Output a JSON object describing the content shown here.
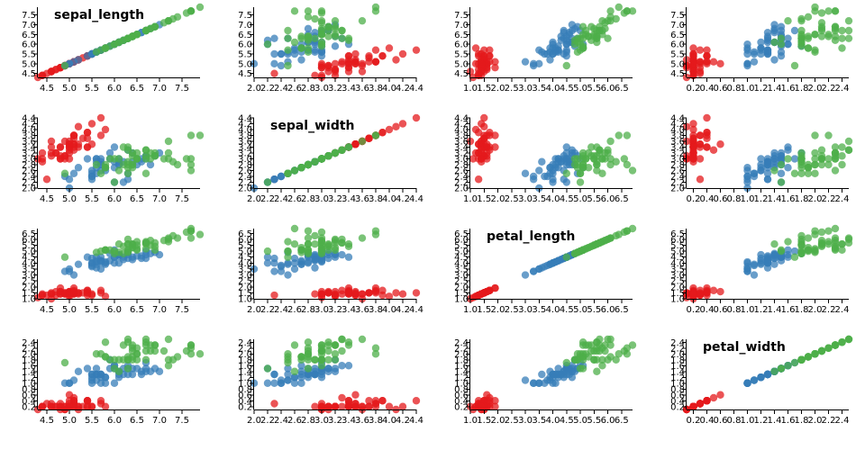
{
  "chart_data": {
    "type": "scatter",
    "layout": "scatterplot-matrix",
    "variables": [
      "sepal_length",
      "sepal_width",
      "petal_length",
      "petal_width"
    ],
    "grid": false,
    "series_colors": [
      "#e41a1c",
      "#377eb8",
      "#4daf4a"
    ],
    "domains": {
      "sepal_length": [
        4.3,
        7.9
      ],
      "sepal_width": [
        2.0,
        4.4
      ],
      "petal_length": [
        1.0,
        6.9
      ],
      "petal_width": [
        0.1,
        2.5
      ]
    },
    "ticks": {
      "sepal_length": {
        "x": [
          "4.5",
          "5.0",
          "5.5",
          "6.0",
          "6.5",
          "7.0",
          "7.5"
        ],
        "y": [
          "4.5",
          "5.0",
          "5.5",
          "6.0",
          "6.5",
          "7.0",
          "7.5"
        ]
      },
      "sepal_width": {
        "x": [
          "2.0",
          "2.2",
          "2.4",
          "2.6",
          "2.8",
          "3.0",
          "3.2",
          "3.4",
          "3.6",
          "3.8",
          "4.0",
          "4.2",
          "4.4"
        ],
        "y": [
          "2.0",
          "2.2",
          "2.4",
          "2.6",
          "2.8",
          "3.0",
          "3.2",
          "3.4",
          "3.6",
          "3.8",
          "4.0",
          "4.2",
          "4.4"
        ]
      },
      "petal_length": {
        "x": [
          "1.0",
          "1.5",
          "2.0",
          "2.5",
          "3.0",
          "3.5",
          "4.0",
          "4.5",
          "5.0",
          "5.5",
          "6.0",
          "6.5"
        ],
        "y": [
          "1.0",
          "1.5",
          "2.0",
          "2.5",
          "3.0",
          "3.5",
          "4.0",
          "4.5",
          "5.0",
          "5.5",
          "6.0",
          "6.5"
        ]
      },
      "petal_width": {
        "x": [
          "0.2",
          "0.4",
          "0.6",
          "0.8",
          "1.0",
          "1.2",
          "1.4",
          "1.6",
          "1.8",
          "2.0",
          "2.2",
          "2.4"
        ],
        "y": [
          "0.2",
          "0.4",
          "0.6",
          "0.8",
          "1.0",
          "1.2",
          "1.4",
          "1.6",
          "1.8",
          "2.0",
          "2.2",
          "2.4"
        ]
      }
    },
    "series": [
      {
        "color": "#e41a1c",
        "points": [
          [
            5.1,
            3.5,
            1.4,
            0.2
          ],
          [
            4.9,
            3.0,
            1.4,
            0.2
          ],
          [
            4.7,
            3.2,
            1.3,
            0.2
          ],
          [
            4.6,
            3.1,
            1.5,
            0.2
          ],
          [
            5.0,
            3.6,
            1.4,
            0.2
          ],
          [
            5.4,
            3.9,
            1.7,
            0.4
          ],
          [
            4.6,
            3.4,
            1.4,
            0.3
          ],
          [
            5.0,
            3.4,
            1.5,
            0.2
          ],
          [
            4.4,
            2.9,
            1.4,
            0.2
          ],
          [
            4.9,
            3.1,
            1.5,
            0.1
          ],
          [
            5.4,
            3.7,
            1.5,
            0.2
          ],
          [
            4.8,
            3.4,
            1.6,
            0.2
          ],
          [
            4.8,
            3.0,
            1.4,
            0.1
          ],
          [
            4.3,
            3.0,
            1.1,
            0.1
          ],
          [
            5.8,
            4.0,
            1.2,
            0.2
          ],
          [
            5.7,
            4.4,
            1.5,
            0.4
          ],
          [
            5.4,
            3.9,
            1.3,
            0.4
          ],
          [
            5.1,
            3.5,
            1.4,
            0.3
          ],
          [
            5.7,
            3.8,
            1.7,
            0.3
          ],
          [
            5.1,
            3.8,
            1.5,
            0.3
          ],
          [
            5.4,
            3.4,
            1.7,
            0.2
          ],
          [
            5.1,
            3.7,
            1.5,
            0.4
          ],
          [
            4.6,
            3.6,
            1.0,
            0.2
          ],
          [
            5.1,
            3.3,
            1.7,
            0.5
          ],
          [
            4.8,
            3.4,
            1.9,
            0.2
          ],
          [
            5.0,
            3.0,
            1.6,
            0.2
          ],
          [
            5.0,
            3.4,
            1.6,
            0.4
          ],
          [
            5.2,
            3.5,
            1.5,
            0.2
          ],
          [
            5.2,
            3.4,
            1.4,
            0.2
          ],
          [
            4.7,
            3.2,
            1.6,
            0.2
          ],
          [
            4.8,
            3.1,
            1.6,
            0.2
          ],
          [
            5.4,
            3.4,
            1.5,
            0.4
          ],
          [
            5.2,
            4.1,
            1.5,
            0.1
          ],
          [
            5.5,
            4.2,
            1.4,
            0.2
          ],
          [
            4.9,
            3.1,
            1.5,
            0.2
          ],
          [
            5.0,
            3.2,
            1.2,
            0.2
          ],
          [
            5.5,
            3.5,
            1.3,
            0.2
          ],
          [
            4.9,
            3.6,
            1.4,
            0.1
          ],
          [
            4.4,
            3.0,
            1.3,
            0.2
          ],
          [
            5.1,
            3.4,
            1.5,
            0.2
          ],
          [
            5.0,
            3.5,
            1.3,
            0.3
          ],
          [
            4.5,
            2.3,
            1.3,
            0.3
          ],
          [
            4.4,
            3.2,
            1.3,
            0.2
          ],
          [
            5.0,
            3.5,
            1.6,
            0.6
          ],
          [
            5.1,
            3.8,
            1.9,
            0.4
          ],
          [
            4.8,
            3.0,
            1.4,
            0.3
          ],
          [
            5.1,
            3.8,
            1.6,
            0.2
          ],
          [
            4.6,
            3.2,
            1.4,
            0.2
          ],
          [
            5.3,
            3.7,
            1.5,
            0.2
          ],
          [
            5.0,
            3.3,
            1.4,
            0.2
          ]
        ]
      },
      {
        "color": "#377eb8",
        "points": [
          [
            7.0,
            3.2,
            4.7,
            1.4
          ],
          [
            6.4,
            3.2,
            4.5,
            1.5
          ],
          [
            6.9,
            3.1,
            4.9,
            1.5
          ],
          [
            5.5,
            2.3,
            4.0,
            1.3
          ],
          [
            6.5,
            2.8,
            4.6,
            1.5
          ],
          [
            5.7,
            2.8,
            4.5,
            1.3
          ],
          [
            6.3,
            3.3,
            4.7,
            1.6
          ],
          [
            4.9,
            2.4,
            3.3,
            1.0
          ],
          [
            6.6,
            2.9,
            4.6,
            1.3
          ],
          [
            5.2,
            2.7,
            3.9,
            1.4
          ],
          [
            5.0,
            2.0,
            3.5,
            1.0
          ],
          [
            5.9,
            3.0,
            4.2,
            1.5
          ],
          [
            6.0,
            2.2,
            4.0,
            1.0
          ],
          [
            6.1,
            2.9,
            4.7,
            1.4
          ],
          [
            5.6,
            2.9,
            3.6,
            1.3
          ],
          [
            6.7,
            3.1,
            4.4,
            1.4
          ],
          [
            5.6,
            3.0,
            4.5,
            1.5
          ],
          [
            5.8,
            2.7,
            4.1,
            1.0
          ],
          [
            6.2,
            2.2,
            4.5,
            1.5
          ],
          [
            5.6,
            2.5,
            3.9,
            1.1
          ],
          [
            5.9,
            3.2,
            4.8,
            1.8
          ],
          [
            6.1,
            2.8,
            4.0,
            1.3
          ],
          [
            6.3,
            2.5,
            4.9,
            1.5
          ],
          [
            6.1,
            2.8,
            4.7,
            1.2
          ],
          [
            6.4,
            2.9,
            4.3,
            1.3
          ],
          [
            6.6,
            3.0,
            4.4,
            1.4
          ],
          [
            6.8,
            2.8,
            4.8,
            1.4
          ],
          [
            6.7,
            3.0,
            5.0,
            1.7
          ],
          [
            6.0,
            2.9,
            4.5,
            1.5
          ],
          [
            5.7,
            2.6,
            3.5,
            1.0
          ],
          [
            5.5,
            2.4,
            3.8,
            1.1
          ],
          [
            5.5,
            2.4,
            3.7,
            1.0
          ],
          [
            5.8,
            2.7,
            3.9,
            1.2
          ],
          [
            6.0,
            2.7,
            5.1,
            1.6
          ],
          [
            5.4,
            3.0,
            4.5,
            1.5
          ],
          [
            6.0,
            3.4,
            4.5,
            1.6
          ],
          [
            6.7,
            3.1,
            4.7,
            1.5
          ],
          [
            6.3,
            2.3,
            4.4,
            1.3
          ],
          [
            5.6,
            3.0,
            4.1,
            1.3
          ],
          [
            5.5,
            2.5,
            4.0,
            1.3
          ],
          [
            5.5,
            2.6,
            4.4,
            1.2
          ],
          [
            6.1,
            3.0,
            4.6,
            1.4
          ],
          [
            5.8,
            2.6,
            4.0,
            1.2
          ],
          [
            5.0,
            2.3,
            3.3,
            1.0
          ],
          [
            5.6,
            2.7,
            4.2,
            1.3
          ],
          [
            5.7,
            3.0,
            4.2,
            1.2
          ],
          [
            5.7,
            2.9,
            4.2,
            1.3
          ],
          [
            6.2,
            2.9,
            4.3,
            1.3
          ],
          [
            5.1,
            2.5,
            3.0,
            1.1
          ],
          [
            5.7,
            2.8,
            4.1,
            1.3
          ]
        ]
      },
      {
        "color": "#4daf4a",
        "points": [
          [
            6.3,
            3.3,
            6.0,
            2.5
          ],
          [
            5.8,
            2.7,
            5.1,
            1.9
          ],
          [
            7.1,
            3.0,
            5.9,
            2.1
          ],
          [
            6.3,
            2.9,
            5.6,
            1.8
          ],
          [
            6.5,
            3.0,
            5.8,
            2.2
          ],
          [
            7.6,
            3.0,
            6.6,
            2.1
          ],
          [
            4.9,
            2.5,
            4.5,
            1.7
          ],
          [
            7.3,
            2.9,
            6.3,
            1.8
          ],
          [
            6.7,
            2.5,
            5.8,
            1.8
          ],
          [
            7.2,
            3.6,
            6.1,
            2.5
          ],
          [
            6.5,
            3.2,
            5.1,
            2.0
          ],
          [
            6.4,
            2.7,
            5.3,
            1.9
          ],
          [
            6.8,
            3.0,
            5.5,
            2.1
          ],
          [
            5.7,
            2.5,
            5.0,
            2.0
          ],
          [
            5.8,
            2.8,
            5.1,
            2.4
          ],
          [
            6.4,
            3.2,
            5.3,
            2.3
          ],
          [
            6.5,
            3.0,
            5.5,
            1.8
          ],
          [
            7.7,
            3.8,
            6.7,
            2.2
          ],
          [
            7.7,
            2.6,
            6.9,
            2.3
          ],
          [
            6.0,
            2.2,
            5.0,
            1.5
          ],
          [
            6.9,
            3.2,
            5.7,
            2.3
          ],
          [
            5.6,
            2.8,
            4.9,
            2.0
          ],
          [
            7.7,
            2.8,
            6.7,
            2.0
          ],
          [
            6.3,
            2.7,
            4.9,
            1.8
          ],
          [
            6.7,
            3.3,
            5.7,
            2.1
          ],
          [
            7.2,
            3.2,
            6.0,
            1.8
          ],
          [
            6.2,
            2.8,
            4.8,
            1.8
          ],
          [
            6.1,
            3.0,
            4.9,
            1.8
          ],
          [
            6.4,
            2.8,
            5.6,
            2.1
          ],
          [
            7.2,
            3.0,
            5.8,
            1.6
          ],
          [
            7.4,
            2.8,
            6.1,
            1.9
          ],
          [
            7.9,
            3.8,
            6.4,
            2.0
          ],
          [
            6.4,
            2.8,
            5.6,
            2.2
          ],
          [
            6.3,
            2.8,
            5.1,
            1.5
          ],
          [
            6.1,
            2.6,
            5.6,
            1.4
          ],
          [
            7.7,
            3.0,
            6.1,
            2.3
          ],
          [
            6.3,
            3.4,
            5.6,
            2.4
          ],
          [
            6.4,
            3.1,
            5.5,
            1.8
          ],
          [
            6.0,
            3.0,
            4.8,
            1.8
          ],
          [
            6.9,
            3.1,
            5.4,
            2.1
          ],
          [
            6.7,
            3.1,
            5.6,
            2.4
          ],
          [
            6.9,
            3.1,
            5.1,
            2.3
          ],
          [
            5.8,
            2.7,
            5.1,
            1.9
          ],
          [
            6.8,
            3.2,
            5.9,
            2.3
          ],
          [
            6.7,
            3.3,
            5.7,
            2.5
          ],
          [
            6.7,
            3.0,
            5.2,
            2.3
          ],
          [
            6.3,
            2.5,
            5.0,
            1.9
          ],
          [
            6.5,
            3.0,
            5.2,
            2.0
          ],
          [
            6.2,
            3.4,
            5.4,
            2.3
          ],
          [
            5.9,
            3.0,
            5.1,
            1.8
          ]
        ]
      }
    ]
  }
}
